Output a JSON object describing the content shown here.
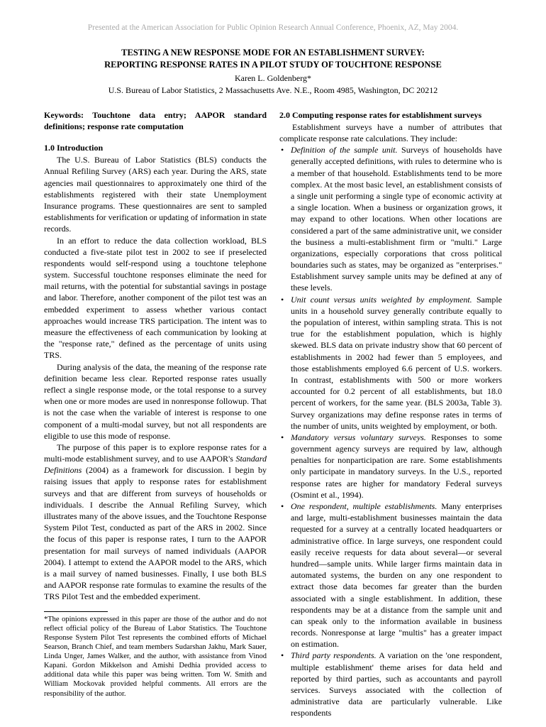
{
  "header": {
    "presented": "Presented at the American Association for Public Opinion Research Annual Conference, Phoenix, AZ, May 2004.",
    "title": "TESTING A NEW RESPONSE MODE FOR AN ESTABLISHMENT SURVEY:",
    "subtitle": "REPORTING RESPONSE RATES IN A PILOT STUDY OF TOUCHTONE RESPONSE",
    "author": "Karen L. Goldenberg*",
    "affiliation": "U.S. Bureau of Labor Statistics, 2 Massachusetts Ave. N.E., Room 4985, Washington, DC  20212"
  },
  "left": {
    "keywords": "Keywords: Touchtone data entry; AAPOR standard definitions; response rate computation",
    "intro_heading": "1.0 Introduction",
    "p1": "The U.S. Bureau of Labor Statistics (BLS) conducts the Annual Refiling Survey (ARS) each year.  During the ARS, state agencies mail questionnaires to approximately one third of the establishments registered with their state Unemployment Insurance programs. These questionnaires are sent to sampled establishments for verification or updating of information in state records.",
    "p2": "In an effort to reduce the data collection workload, BLS conducted a five-state pilot test in 2002 to see if preselected respondents would self-respond using a touchtone telephone system. Successful touchtone responses eliminate the need for mail returns, with the potential for substantial savings in postage and labor. Therefore, another component of the pilot test was an embedded experiment to assess whether various contact approaches would increase TRS participation. The intent was to measure the effectiveness of each communication by looking at the \"response rate,\" defined as the percentage of units using TRS.",
    "p3": "During analysis of the data, the meaning of the response rate definition became less clear. Reported response rates usually reflect a single response mode, or the total response to a survey when one or more modes are used in nonresponse followup.  That is not the case when the variable of interest is response to one component of a multi-modal survey, but not all respondents are eligible to use this mode of response.",
    "p4a": "The purpose of this paper is to explore response rates for a multi-mode establishment survey, and to use AAPOR's ",
    "p4_italic": "Standard Definitions",
    "p4b": " (2004) as a framework for discussion.  I begin by raising issues that apply to response rates for establishment surveys and that are different from surveys of households or individuals. I describe the Annual Refiling Survey, which illustrates many of the above issues, and the Touchtone Response System Pilot Test, conducted as part of the ARS in 2002.  Since the focus of this paper is response rates, I turn to the AAPOR presentation for mail surveys of named individuals (AAPOR 2004). I attempt to extend the AAPOR model to the ARS, which is a mail survey of named businesses.  Finally, I use both BLS and AAPOR response rate formulas to examine the results of the TRS Pilot Test and the embedded experiment.",
    "footnote": "*The opinions expressed in this paper are those of the author and do not reflect official policy of the Bureau of Labor Statistics.   The Touchtone Response System Pilot Test represents the combined efforts of Michael Searson, Branch Chief, and team members Sudarshan Jakhu, Mark Sauer, Linda Unger, James Walker, and the author, with assistance from Vinod Kapani.  Gordon Mikkelson and Amishi Dedhia provided access to additional data while this paper was being written.  Tom W. Smith and William Mockovak provided helpful comments.  All errors are the responsibility of the author."
  },
  "right": {
    "section_heading": "2.0 Computing response rates for establishment surveys",
    "intro": "Establishment surveys have a number of attributes that complicate response rate calculations.  They include:",
    "bullets": [
      {
        "lead": "Definition of the sample unit.",
        "body": "  Surveys of households have generally accepted definitions, with rules to determine who is a member of that household. Establishments tend to be more complex.  At the most basic level, an establishment consists of a single unit performing a single type of economic activity at a single location.  When a business or organization grows, it may expand to other locations. When other locations are considered a part of the same administrative unit, we consider the business a multi-establishment firm or \"multi.\" Large organizations, especially corporations that cross political boundaries such as states, may be organized as \"enterprises.\"  Establishment survey sample units may be defined at any of these levels."
      },
      {
        "lead": "Unit count versus units weighted by employment.",
        "body": "  Sample units in a household survey generally contribute equally to the population of interest, within sampling strata.  This is not true for the establishment population, which is highly skewed.  BLS data on private industry show that 60 percent of establishments in 2002 had fewer than 5 employees, and those establishments employed 6.6 percent of U.S. workers.  In contrast, establishments with 500 or more workers accounted for 0.2 percent of all establishments, but 18.0 percent of workers, for the same year. (BLS 2003a, Table 3).  Survey organizations may define response rates in terms of the number of units, units weighted by employment, or both."
      },
      {
        "lead": "Mandatory versus voluntary surveys.",
        "body": "  Responses to some government agency surveys are required by law, although penalties for nonparticipation are rare.  Some establishments only participate in mandatory surveys. In the U.S., reported response rates are higher for mandatory Federal surveys (Osmint et al., 1994)."
      },
      {
        "lead": "One respondent, multiple establishments.",
        "body": " Many enterprises and large, multi-establishment businesses maintain the data requested for a survey at a centrally located headquarters or administrative office.  In large surveys, one respondent could easily receive requests for data about several—or several hundred—sample units.  While larger firms maintain data in automated systems, the burden on any one respondent to extract those data becomes far greater than the burden associated with a single establishment.  In addition, these respondents may be at a distance from the sample unit and can speak only to the information available in business records.  Nonresponse at large \"multis\" has a greater impact on estimation."
      },
      {
        "lead": "Third party respondents.",
        "body": " A variation on the 'one respondent, multiple establishment' theme arises for data held and reported by third parties, such as accountants and payroll services.  Surveys associated with the collection of administrative data are particularly vulnerable.  Like respondents"
      }
    ]
  }
}
